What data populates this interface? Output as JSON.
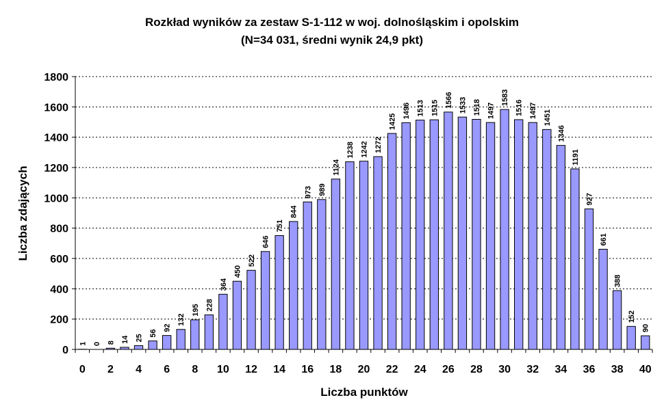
{
  "chart_data": {
    "type": "bar",
    "title": "Rozkład wyników za zestaw S-1-112 w woj. dolnośląskim i opolskim",
    "subtitle": "(N=34 031, średni wynik 24,9 pkt)",
    "xlabel": "Liczba punktów",
    "ylabel": "Liczba zdających",
    "categories": [
      "0",
      "1",
      "2",
      "3",
      "4",
      "5",
      "6",
      "7",
      "8",
      "9",
      "10",
      "11",
      "12",
      "13",
      "14",
      "15",
      "16",
      "17",
      "18",
      "19",
      "20",
      "21",
      "22",
      "23",
      "24",
      "25",
      "26",
      "27",
      "28",
      "29",
      "30",
      "31",
      "32",
      "33",
      "34",
      "35",
      "36",
      "37",
      "38",
      "39",
      "40"
    ],
    "x_tick_labels": [
      "0",
      "2",
      "4",
      "6",
      "8",
      "10",
      "12",
      "14",
      "16",
      "18",
      "20",
      "22",
      "24",
      "26",
      "28",
      "30",
      "32",
      "34",
      "36",
      "38",
      "40"
    ],
    "values": [
      1,
      0,
      8,
      14,
      25,
      56,
      92,
      132,
      195,
      228,
      364,
      450,
      522,
      646,
      751,
      844,
      973,
      989,
      1124,
      1238,
      1242,
      1272,
      1425,
      1496,
      1513,
      1515,
      1566,
      1533,
      1518,
      1497,
      1583,
      1516,
      1497,
      1451,
      1346,
      1191,
      927,
      661,
      388,
      152,
      90
    ],
    "ylim": [
      0,
      1800
    ],
    "y_ticks": [
      0,
      200,
      400,
      600,
      800,
      1000,
      1200,
      1400,
      1600,
      1800
    ],
    "grid": "horizontal dashed",
    "legend": "none",
    "colors": {
      "bar_fill": "#9999ff",
      "bar_stroke": "#000000",
      "grid": "#000000"
    }
  }
}
